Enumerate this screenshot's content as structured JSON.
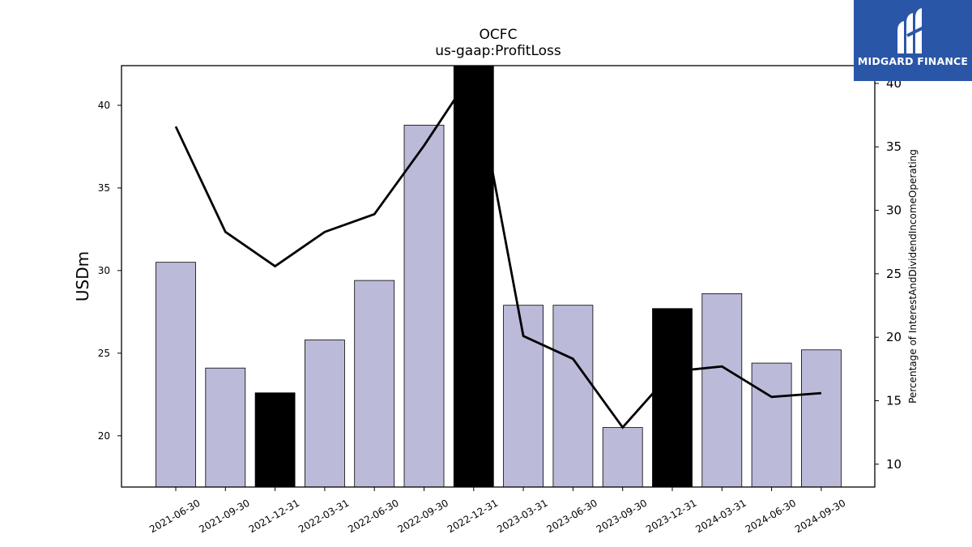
{
  "chart_data": {
    "type": "bar",
    "title": "OCFC",
    "subtitle": "us-gaap:ProfitLoss",
    "ylabel": "USDm",
    "y2label": "Percentage of InterestAndDividendIncomeOperating",
    "categories": [
      "2021-06-30",
      "2021-09-30",
      "2021-12-31",
      "2022-03-31",
      "2022-06-30",
      "2022-09-30",
      "2022-12-31",
      "2023-03-31",
      "2023-06-30",
      "2023-09-30",
      "2023-12-31",
      "2024-03-31",
      "2024-06-30",
      "2024-09-30"
    ],
    "series": [
      {
        "type": "bar",
        "axis": "left",
        "values": [
          30.5,
          24.1,
          22.6,
          25.8,
          29.4,
          38.8,
          43.0,
          27.9,
          27.9,
          20.5,
          27.7,
          28.6,
          24.4,
          25.2
        ],
        "highlight": [
          false,
          false,
          true,
          false,
          false,
          false,
          true,
          false,
          false,
          false,
          true,
          false,
          false,
          false
        ],
        "color": "#bcbad9",
        "highlight_color": "#000000"
      },
      {
        "type": "line",
        "axis": "right",
        "values": [
          36.6,
          28.3,
          25.6,
          28.3,
          29.7,
          35.1,
          41.0,
          20.1,
          18.3,
          12.9,
          17.3,
          17.7,
          15.3,
          15.6
        ],
        "color": "#000000"
      }
    ],
    "ylim": [
      16.9,
      42.4
    ],
    "yticks": [
      20,
      25,
      30,
      35,
      40
    ],
    "y2lim": [
      8.2,
      41.4
    ],
    "y2ticks": [
      10,
      15,
      20,
      25,
      30,
      35,
      40
    ],
    "grid": false,
    "legend": "none"
  },
  "logo": {
    "text": "MIDGARD FINANCE"
  }
}
